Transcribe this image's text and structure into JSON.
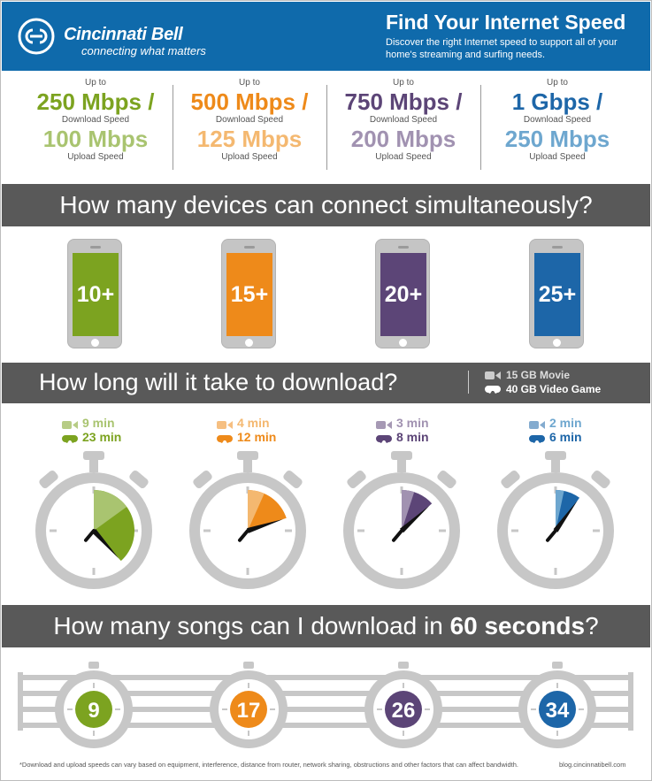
{
  "header": {
    "brand_name": "Cincinnati Bell",
    "brand_tagline": "connecting what matters",
    "title": "Find Your Internet Speed",
    "subtitle": "Discover the right Internet speed to support all of your home's streaming and surfing needs."
  },
  "colors": {
    "header_bg": "#0f6aab",
    "bar_bg": "#595959",
    "green": "#7ca320",
    "green_light": "#a9c470",
    "orange": "#ee8a1a",
    "orange_light": "#f4b870",
    "purple": "#5c4577",
    "purple_light": "#a192b1",
    "blue": "#1d66a8",
    "blue_light": "#6ea7cf",
    "timer_gray": "#c7c7c7"
  },
  "speeds": [
    {
      "up_to": "Up to",
      "download": "250 Mbps /",
      "download_label": "Download Speed",
      "upload": "100 Mbps",
      "upload_label": "Upload Speed"
    },
    {
      "up_to": "Up to",
      "download": "500 Mbps /",
      "download_label": "Download Speed",
      "upload": "125 Mbps",
      "upload_label": "Upload Speed"
    },
    {
      "up_to": "Up to",
      "download": "750 Mbps /",
      "download_label": "Download Speed",
      "upload": "200 Mbps",
      "upload_label": "Upload Speed"
    },
    {
      "up_to": "Up to",
      "download": "1 Gbps /",
      "download_label": "Download Speed",
      "upload": "250 Mbps",
      "upload_label": "Upload Speed"
    }
  ],
  "devices": {
    "heading": "How many devices can connect simultaneously?",
    "counts": [
      "10+",
      "15+",
      "20+",
      "25+"
    ]
  },
  "download": {
    "heading": "How long will it take to download?",
    "legend_movie": "15 GB Movie",
    "legend_game": "40 GB Video Game",
    "movie_icon": "video-camera-icon",
    "game_icon": "gamepad-icon",
    "tiers": [
      {
        "movie": "9 min",
        "game": "23 min"
      },
      {
        "movie": "4 min",
        "game": "12 min"
      },
      {
        "movie": "3 min",
        "game": "8 min"
      },
      {
        "movie": "2 min",
        "game": "6 min"
      }
    ]
  },
  "songs": {
    "heading_pre": "How many songs can I download in ",
    "heading_bold": "60 seconds",
    "heading_post": "?",
    "counts": [
      "9",
      "17",
      "26",
      "34"
    ]
  },
  "footer": {
    "footnote": "*Download and upload speeds can vary based on equipment, interference, distance from router, network sharing, obstructions and other factors that can affect bandwidth.",
    "blog": "blog.cincinnatibell.com"
  }
}
